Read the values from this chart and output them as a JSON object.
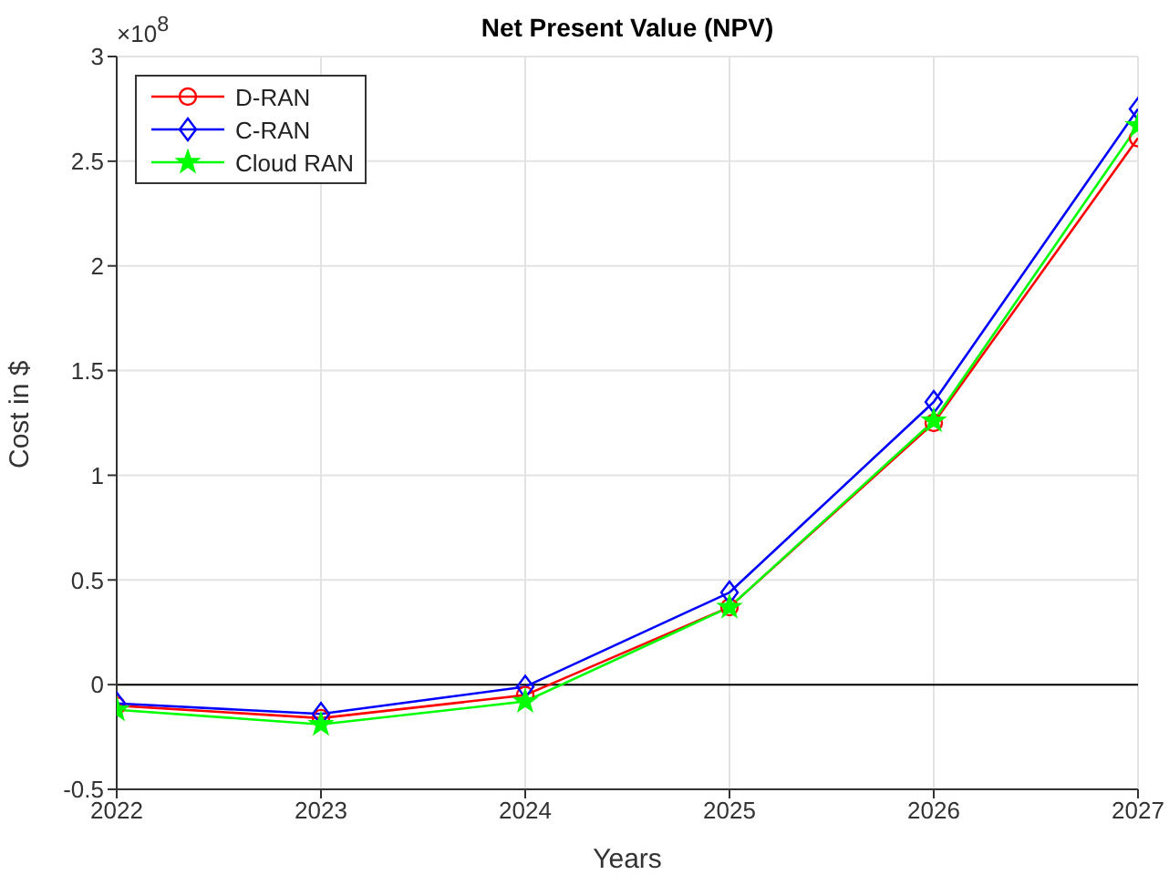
{
  "chart_data": {
    "type": "line",
    "title": "Net Present Value (NPV)",
    "xlabel": "Years",
    "ylabel": "Cost in $",
    "annotations": [
      "×10$^{8}$"
    ],
    "x": [
      2022,
      2023,
      2024,
      2025,
      2026,
      2027
    ],
    "xlim": [
      2022,
      2027
    ],
    "xticks": [
      2022,
      2023,
      2024,
      2025,
      2026,
      2027
    ],
    "ylim": [
      -0.5,
      3
    ],
    "yticks": [
      -0.5,
      0,
      0.5,
      1,
      1.5,
      2,
      2.5,
      3
    ],
    "series": [
      {
        "name": "D-RAN",
        "color": "#ff0000",
        "marker": "circle",
        "values": [
          -0.1,
          -0.16,
          -0.05,
          0.37,
          1.25,
          2.61
        ]
      },
      {
        "name": "C-RAN",
        "color": "#0000ff",
        "marker": "diamond",
        "values": [
          -0.09,
          -0.14,
          -0.01,
          0.44,
          1.35,
          2.75
        ]
      },
      {
        "name": "Cloud RAN",
        "color": "#00ff00",
        "marker": "star",
        "values": [
          -0.12,
          -0.19,
          -0.08,
          0.37,
          1.26,
          2.67
        ]
      }
    ],
    "ref_lines": [
      {
        "axis": "y",
        "value": 0,
        "color": "#000000"
      }
    ],
    "grid": true,
    "legend": "top left",
    "line_style": "solid"
  }
}
